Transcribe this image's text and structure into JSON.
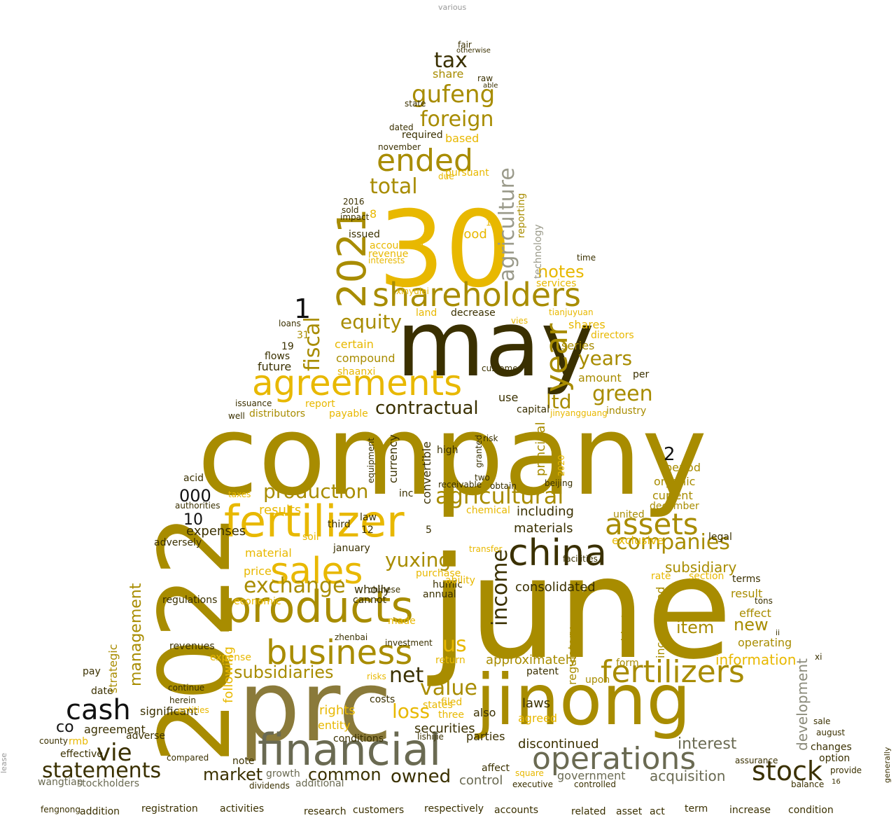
{
  "palette": {
    "gold": "#e8b800",
    "olive": "#a88c00",
    "dark": "#3a3000",
    "gray": "#7a7a6a",
    "black": "#111111"
  },
  "words": [
    {
      "t": "various",
      "c": "gray"
    },
    {
      "t": "company",
      "c": "olive"
    },
    {
      "t": "june",
      "c": "olive"
    },
    {
      "t": "may",
      "c": "dark"
    },
    {
      "t": "30",
      "c": "gold"
    },
    {
      "t": "2022",
      "c": "olive"
    },
    {
      "t": "prc",
      "c": "olive"
    },
    {
      "t": "jinong",
      "c": "olive"
    },
    {
      "t": "fertilizer",
      "c": "gold"
    },
    {
      "t": "products",
      "c": "olive"
    },
    {
      "t": "agreements",
      "c": "gold"
    },
    {
      "t": "shareholders",
      "c": "olive"
    },
    {
      "t": "2021",
      "c": "olive"
    },
    {
      "t": "china",
      "c": "dark"
    },
    {
      "t": "financial",
      "c": "gray"
    },
    {
      "t": "operations",
      "c": "gray"
    },
    {
      "t": "sales",
      "c": "gold"
    },
    {
      "t": "business",
      "c": "olive"
    },
    {
      "t": "fertilizers",
      "c": "olive"
    },
    {
      "t": "assets",
      "c": "olive"
    },
    {
      "t": "agricultural",
      "c": "olive"
    },
    {
      "t": "cash",
      "c": "black"
    },
    {
      "t": "stock",
      "c": "dark"
    },
    {
      "t": "statements",
      "c": "dark"
    },
    {
      "t": "ended",
      "c": "olive"
    },
    {
      "t": "year",
      "c": "olive"
    },
    {
      "t": "agriculture",
      "c": "gray"
    },
    {
      "t": "gufeng",
      "c": "olive"
    },
    {
      "t": "foreign",
      "c": "olive"
    },
    {
      "t": "tax",
      "c": "dark"
    },
    {
      "t": "total",
      "c": "olive"
    },
    {
      "t": "fiscal",
      "c": "olive"
    },
    {
      "t": "equity",
      "c": "olive"
    },
    {
      "t": "production",
      "c": "olive"
    },
    {
      "t": "contractual",
      "c": "dark"
    },
    {
      "t": "green",
      "c": "olive"
    },
    {
      "t": "ltd",
      "c": "olive"
    },
    {
      "t": "years",
      "c": "olive"
    },
    {
      "t": "notes",
      "c": "gold"
    },
    {
      "t": "yuxing",
      "c": "olive"
    },
    {
      "t": "companies",
      "c": "olive"
    },
    {
      "t": "income",
      "c": "dark"
    },
    {
      "t": "exchange",
      "c": "olive"
    },
    {
      "t": "subsidiaries",
      "c": "olive"
    },
    {
      "t": "management",
      "c": "olive"
    },
    {
      "t": "vie",
      "c": "dark"
    },
    {
      "t": "market",
      "c": "dark"
    },
    {
      "t": "common",
      "c": "dark"
    },
    {
      "t": "owned",
      "c": "dark"
    },
    {
      "t": "loss",
      "c": "gold"
    },
    {
      "t": "net",
      "c": "dark"
    },
    {
      "t": "value",
      "c": "olive"
    },
    {
      "t": "us",
      "c": "gold"
    },
    {
      "t": "acquisition",
      "c": "gray"
    },
    {
      "t": "interest",
      "c": "gray"
    },
    {
      "t": "development",
      "c": "gray"
    },
    {
      "t": "information",
      "c": "gold"
    },
    {
      "t": "new",
      "c": "olive"
    },
    {
      "t": "item",
      "c": "olive"
    },
    {
      "t": "co",
      "c": "black"
    },
    {
      "t": "000",
      "c": "black"
    },
    {
      "t": "10",
      "c": "black"
    },
    {
      "t": "1",
      "c": "black"
    },
    {
      "t": "2",
      "c": "black"
    },
    {
      "t": "3",
      "c": "olive"
    },
    {
      "t": "consolidated",
      "c": "dark"
    },
    {
      "t": "subsidiary",
      "c": "olive"
    },
    {
      "t": "approximately",
      "c": "olive"
    },
    {
      "t": "securities",
      "c": "dark"
    },
    {
      "t": "discontinued",
      "c": "dark"
    },
    {
      "t": "government",
      "c": "gray"
    },
    {
      "t": "control",
      "c": "gray"
    },
    {
      "t": "expenses",
      "c": "dark"
    },
    {
      "t": "results",
      "c": "gold"
    },
    {
      "t": "materials",
      "c": "dark"
    },
    {
      "t": "including",
      "c": "dark"
    },
    {
      "t": "exclusive",
      "c": "gold"
    },
    {
      "t": "period",
      "c": "olive"
    },
    {
      "t": "current",
      "c": "olive"
    },
    {
      "t": "organic",
      "c": "olive"
    },
    {
      "t": "december",
      "c": "olive"
    },
    {
      "t": "shares",
      "c": "gold"
    },
    {
      "t": "series",
      "c": "olive"
    },
    {
      "t": "amount",
      "c": "olive"
    },
    {
      "t": "industry",
      "c": "olive"
    },
    {
      "t": "certain",
      "c": "gold"
    },
    {
      "t": "compound",
      "c": "olive"
    },
    {
      "t": "shaanxi",
      "c": "gold"
    },
    {
      "t": "future",
      "c": "dark"
    },
    {
      "t": "report",
      "c": "gold"
    },
    {
      "t": "distributors",
      "c": "olive"
    },
    {
      "t": "payable",
      "c": "gold"
    },
    {
      "t": "capital",
      "c": "dark"
    },
    {
      "t": "use",
      "c": "dark"
    },
    {
      "t": "jinyangguang",
      "c": "gold"
    },
    {
      "t": "tianjuyuan",
      "c": "gold"
    },
    {
      "t": "services",
      "c": "gold"
    },
    {
      "t": "reporting",
      "c": "olive"
    },
    {
      "t": "technology",
      "c": "gray"
    },
    {
      "t": "based",
      "c": "gold"
    },
    {
      "t": "required",
      "c": "dark"
    },
    {
      "t": "november",
      "c": "dark"
    },
    {
      "t": "dated",
      "c": "dark"
    },
    {
      "t": "share",
      "c": "olive"
    },
    {
      "t": "fair",
      "c": "dark"
    },
    {
      "t": "pursuant",
      "c": "gold"
    },
    {
      "t": "due",
      "c": "gold"
    },
    {
      "t": "issued",
      "c": "dark"
    },
    {
      "t": "sold",
      "c": "dark"
    },
    {
      "t": "impact",
      "c": "dark"
    },
    {
      "t": "2016",
      "c": "dark"
    },
    {
      "t": "8",
      "c": "gold"
    },
    {
      "t": "food",
      "c": "gold"
    },
    {
      "t": "15",
      "c": "gold"
    },
    {
      "t": "accounting",
      "c": "gold"
    },
    {
      "t": "revenue",
      "c": "gold"
    },
    {
      "t": "interests",
      "c": "gold"
    },
    {
      "t": "land",
      "c": "gold"
    },
    {
      "t": "decrease",
      "c": "dark"
    },
    {
      "t": "customer",
      "c": "dark"
    },
    {
      "t": "time",
      "c": "dark"
    },
    {
      "t": "per",
      "c": "dark"
    },
    {
      "t": "directors",
      "c": "gold"
    },
    {
      "t": "legal",
      "c": "dark"
    },
    {
      "t": "section",
      "c": "gold"
    },
    {
      "t": "rate",
      "c": "gold"
    },
    {
      "t": "terms",
      "c": "dark"
    },
    {
      "t": "result",
      "c": "olive"
    },
    {
      "t": "effect",
      "c": "olive"
    },
    {
      "t": "operating",
      "c": "olive"
    },
    {
      "t": "tons",
      "c": "dark"
    },
    {
      "t": "regulations",
      "c": "dark"
    },
    {
      "t": "economic",
      "c": "gold"
    },
    {
      "t": "wholly",
      "c": "dark"
    },
    {
      "t": "cannot",
      "c": "dark"
    },
    {
      "t": "chinese",
      "c": "dark"
    },
    {
      "t": "annual",
      "c": "dark"
    },
    {
      "t": "humic",
      "c": "dark"
    },
    {
      "t": "purchase",
      "c": "gold"
    },
    {
      "t": "ability",
      "c": "gold"
    },
    {
      "t": "made",
      "c": "gold"
    },
    {
      "t": "price",
      "c": "gold"
    },
    {
      "t": "material",
      "c": "gold"
    },
    {
      "t": "adversely",
      "c": "dark"
    },
    {
      "t": "acid",
      "c": "dark"
    },
    {
      "t": "taxes",
      "c": "gold"
    },
    {
      "t": "january",
      "c": "dark"
    },
    {
      "t": "12",
      "c": "dark"
    },
    {
      "t": "5",
      "c": "dark"
    },
    {
      "t": "law",
      "c": "dark"
    },
    {
      "t": "third",
      "c": "dark"
    },
    {
      "t": "inc",
      "c": "dark"
    },
    {
      "t": "high",
      "c": "dark"
    },
    {
      "t": "two",
      "c": "dark"
    },
    {
      "t": "receivable",
      "c": "dark"
    },
    {
      "t": "obtain",
      "c": "dark"
    },
    {
      "t": "beijing",
      "c": "dark"
    },
    {
      "t": "chemical",
      "c": "gold"
    },
    {
      "t": "transfer",
      "c": "gold"
    },
    {
      "t": "facilities",
      "c": "dark"
    },
    {
      "t": "laws",
      "c": "dark"
    },
    {
      "t": "agreed",
      "c": "gold"
    },
    {
      "t": "parties",
      "c": "dark"
    },
    {
      "t": "also",
      "c": "dark"
    },
    {
      "t": "costs",
      "c": "dark"
    },
    {
      "t": "rights",
      "c": "gold"
    },
    {
      "t": "entity",
      "c": "gold"
    },
    {
      "t": "conditions",
      "c": "dark"
    },
    {
      "t": "date",
      "c": "dark"
    },
    {
      "t": "pay",
      "c": "dark"
    },
    {
      "t": "agreement",
      "c": "dark"
    },
    {
      "t": "rmb",
      "c": "gold"
    },
    {
      "t": "effective",
      "c": "dark"
    },
    {
      "t": "adverse",
      "c": "dark"
    },
    {
      "t": "significant",
      "c": "dark"
    },
    {
      "t": "county",
      "c": "dark"
    },
    {
      "t": "compared",
      "c": "dark"
    },
    {
      "t": "note",
      "c": "dark"
    },
    {
      "t": "growth",
      "c": "dark"
    },
    {
      "t": "additional",
      "c": "dark"
    },
    {
      "t": "dividends",
      "c": "dark"
    },
    {
      "t": "stockholders",
      "c": "dark"
    },
    {
      "t": "wangtian",
      "c": "dark"
    },
    {
      "t": "affect",
      "c": "dark"
    },
    {
      "t": "square",
      "c": "gold"
    },
    {
      "t": "executive",
      "c": "dark"
    },
    {
      "t": "controlled",
      "c": "dark"
    },
    {
      "t": "assurance",
      "c": "dark"
    },
    {
      "t": "option",
      "c": "dark"
    },
    {
      "t": "changes",
      "c": "dark"
    },
    {
      "t": "august",
      "c": "dark"
    },
    {
      "t": "provide",
      "c": "dark"
    },
    {
      "t": "balance",
      "c": "dark"
    },
    {
      "t": "sale",
      "c": "dark"
    },
    {
      "t": "16",
      "c": "dark"
    },
    {
      "t": "fengnong",
      "c": "dark"
    },
    {
      "t": "addition",
      "c": "dark"
    },
    {
      "t": "registration",
      "c": "dark"
    },
    {
      "t": "activities",
      "c": "dark"
    },
    {
      "t": "research",
      "c": "dark"
    },
    {
      "t": "customers",
      "c": "dark"
    },
    {
      "t": "respectively",
      "c": "dark"
    },
    {
      "t": "accounts",
      "c": "dark"
    },
    {
      "t": "related",
      "c": "dark"
    },
    {
      "t": "asset",
      "c": "dark"
    },
    {
      "t": "act",
      "c": "dark"
    },
    {
      "t": "term",
      "c": "dark"
    },
    {
      "t": "increase",
      "c": "dark"
    },
    {
      "t": "condition",
      "c": "dark"
    },
    {
      "t": "lease",
      "c": "gray"
    },
    {
      "t": "generally",
      "c": "dark"
    },
    {
      "t": "raw",
      "c": "dark"
    },
    {
      "t": "able",
      "c": "dark"
    },
    {
      "t": "state",
      "c": "dark"
    },
    {
      "t": "otherwise",
      "c": "dark"
    },
    {
      "t": "19",
      "c": "dark"
    },
    {
      "t": "flows",
      "c": "dark"
    },
    {
      "t": "31",
      "c": "olive"
    },
    {
      "t": "loans",
      "c": "dark"
    },
    {
      "t": "issuance",
      "c": "dark"
    },
    {
      "t": "well",
      "c": "dark"
    },
    {
      "t": "authorities",
      "c": "dark"
    },
    {
      "t": "investment",
      "c": "dark"
    },
    {
      "t": "zhenbai",
      "c": "dark"
    },
    {
      "t": "risks",
      "c": "gold"
    },
    {
      "t": "return",
      "c": "gold"
    },
    {
      "t": "filed",
      "c": "gold"
    },
    {
      "t": "three",
      "c": "gold"
    },
    {
      "t": "states",
      "c": "gold"
    },
    {
      "t": "lishijie",
      "c": "dark"
    },
    {
      "t": "xinyulei",
      "c": "gold"
    },
    {
      "t": "vies",
      "c": "gold"
    },
    {
      "t": "risk",
      "c": "dark"
    },
    {
      "t": "granted",
      "c": "dark"
    },
    {
      "t": "xi",
      "c": "dark"
    },
    {
      "t": "ii",
      "c": "dark"
    },
    {
      "t": "2020",
      "c": "gold"
    },
    {
      "t": "patent",
      "c": "dark"
    },
    {
      "t": "form",
      "c": "olive"
    },
    {
      "t": "upon",
      "c": "olive"
    },
    {
      "t": "united",
      "c": "olive"
    },
    {
      "t": "herein",
      "c": "dark"
    },
    {
      "t": "continue",
      "c": "dark"
    },
    {
      "t": "entities",
      "c": "gold"
    },
    {
      "t": "expense",
      "c": "gold"
    },
    {
      "t": "revenues",
      "c": "dark"
    },
    {
      "t": "strategic",
      "c": "olive"
    },
    {
      "t": "following",
      "c": "gold"
    },
    {
      "t": "regulatory",
      "c": "olive"
    },
    {
      "t": "principal",
      "c": "olive"
    },
    {
      "t": "incorporated",
      "c": "olive"
    },
    {
      "t": "subject",
      "c": "olive"
    },
    {
      "t": "convertible",
      "c": "dark"
    },
    {
      "t": "currency",
      "c": "dark"
    },
    {
      "t": "equipment",
      "c": "dark"
    },
    {
      "t": "soil",
      "c": "gold"
    }
  ]
}
